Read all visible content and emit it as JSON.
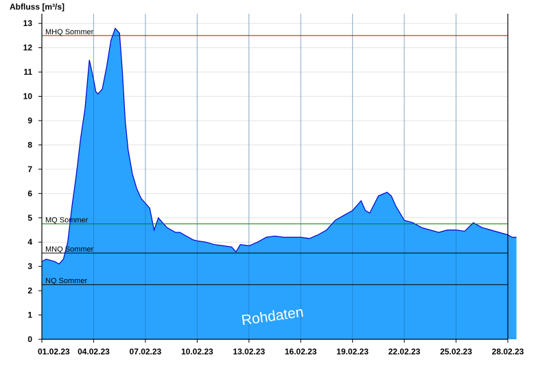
{
  "chart_data": {
    "type": "area",
    "ylabel": "Abfluss [m³/s]",
    "ylim": [
      0,
      13.4
    ],
    "yticks": [
      0,
      1,
      2,
      3,
      4,
      5,
      6,
      7,
      8,
      9,
      10,
      11,
      12,
      13
    ],
    "xlim": [
      "01.02.23",
      "28.02.23"
    ],
    "xticks": [
      "01.02.23",
      "04.02.23",
      "07.02.23",
      "10.02.23",
      "13.02.23",
      "16.02.23",
      "19.02.23",
      "22.02.23",
      "25.02.23",
      "28.02.23"
    ],
    "grid": "horizontal and vertical",
    "reference_lines": [
      {
        "label": "MHQ Sommer",
        "value": 12.5,
        "color": "#cc0000"
      },
      {
        "label": "MQ Sommer",
        "value": 4.75,
        "color": "#008000"
      },
      {
        "label": "MNQ Sommer",
        "value": 3.55,
        "color": "#000000"
      },
      {
        "label": "NQ Sommer",
        "value": 2.25,
        "color": "#000000"
      }
    ],
    "watermark": "Rohdaten",
    "colors": {
      "fill": "#29a3ff",
      "line": "#0000cc"
    },
    "series": [
      {
        "x": [
          "01.02.23 00:00",
          "01.02.23 06:00",
          "01.02.23 12:00",
          "01.02.23 18:00",
          "02.02.23 00:00",
          "02.02.23 06:00",
          "02.02.23 12:00",
          "02.02.23 18:00",
          "03.02.23 00:00",
          "03.02.23 06:00",
          "03.02.23 12:00",
          "03.02.23 18:00",
          "04.02.23 00:00",
          "04.02.23 03:00",
          "04.02.23 06:00",
          "04.02.23 12:00",
          "04.02.23 18:00",
          "05.02.23 00:00",
          "05.02.23 06:00",
          "05.02.23 12:00",
          "05.02.23 16:00",
          "05.02.23 20:00",
          "06.02.23 00:00",
          "06.02.23 06:00",
          "06.02.23 12:00",
          "06.02.23 18:00",
          "07.02.23 00:00",
          "07.02.23 06:00",
          "07.02.23 12:00",
          "07.02.23 18:00",
          "08.02.23 00:00",
          "08.02.23 06:00",
          "08.02.23 12:00",
          "08.02.23 18:00",
          "09.02.23 00:00",
          "09.02.23 06:00",
          "09.02.23 12:00",
          "09.02.23 18:00",
          "10.02.23 00:00",
          "10.02.23 12:00",
          "11.02.23 00:00",
          "11.02.23 12:00",
          "12.02.23 00:00",
          "12.02.23 06:00",
          "12.02.23 12:00",
          "13.02.23 00:00",
          "13.02.23 12:00",
          "14.02.23 00:00",
          "14.02.23 12:00",
          "15.02.23 00:00",
          "15.02.23 12:00",
          "16.02.23 00:00",
          "16.02.23 12:00",
          "17.02.23 00:00",
          "17.02.23 12:00",
          "18.02.23 00:00",
          "18.02.23 12:00",
          "19.02.23 00:00",
          "19.02.23 12:00",
          "19.02.23 18:00",
          "20.02.23 00:00",
          "20.02.23 12:00",
          "21.02.23 00:00",
          "21.02.23 06:00",
          "21.02.23 12:00",
          "21.02.23 18:00",
          "22.02.23 00:00",
          "22.02.23 12:00",
          "23.02.23 00:00",
          "23.02.23 12:00",
          "24.02.23 00:00",
          "24.02.23 12:00",
          "25.02.23 00:00",
          "25.02.23 12:00",
          "26.02.23 00:00",
          "26.02.23 12:00",
          "27.02.23 00:00",
          "27.02.23 12:00",
          "28.02.23 00:00",
          "28.02.23 06:00",
          "28.02.23 12:00"
        ],
        "values": [
          3.2,
          3.3,
          3.25,
          3.2,
          3.1,
          3.3,
          4.0,
          5.5,
          6.8,
          8.3,
          9.5,
          11.5,
          10.7,
          10.2,
          10.1,
          10.3,
          11.2,
          12.3,
          12.8,
          12.6,
          11.0,
          9.0,
          7.8,
          6.8,
          6.2,
          5.8,
          5.6,
          5.4,
          4.5,
          5.0,
          4.8,
          4.6,
          4.5,
          4.4,
          4.4,
          4.3,
          4.2,
          4.1,
          4.05,
          4.0,
          3.9,
          3.85,
          3.8,
          3.6,
          3.9,
          3.85,
          4.0,
          4.2,
          4.25,
          4.2,
          4.2,
          4.2,
          4.15,
          4.3,
          4.5,
          4.9,
          5.1,
          5.3,
          5.7,
          5.3,
          5.2,
          5.9,
          6.05,
          5.9,
          5.5,
          5.2,
          4.9,
          4.8,
          4.6,
          4.5,
          4.4,
          4.5,
          4.5,
          4.45,
          4.8,
          4.6,
          4.5,
          4.4,
          4.3,
          4.2,
          4.2
        ]
      }
    ]
  }
}
